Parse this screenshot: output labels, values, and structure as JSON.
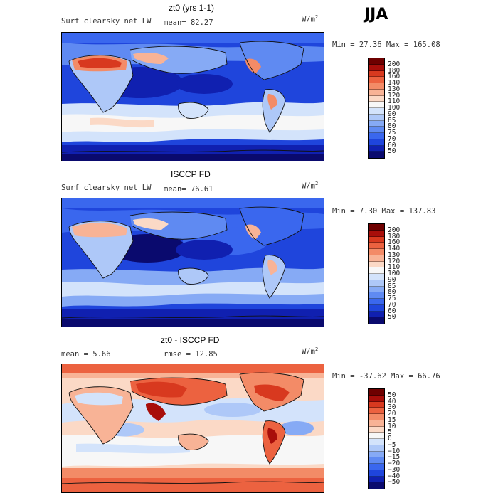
{
  "season": "JJA",
  "panels": [
    {
      "title": "zt0 (yrs 1-1)",
      "variable": "Surf clearsky net LW",
      "stat1_label": "mean=",
      "stat1_value": "82.27",
      "stat2_label": "",
      "stat2_value": "",
      "units": "W/m",
      "units_exp": "2",
      "range_text": "Min =  27.36 Max = 165.08",
      "colorbar_levels": [
        "200",
        "180",
        "160",
        "140",
        "130",
        "120",
        "110",
        "100",
        "90",
        "85",
        "80",
        "75",
        "70",
        "60",
        "50"
      ]
    },
    {
      "title": "ISCCP FD",
      "variable": "Surf clearsky net LW",
      "stat1_label": "mean=",
      "stat1_value": "76.61",
      "stat2_label": "",
      "stat2_value": "",
      "units": "W/m",
      "units_exp": "2",
      "range_text": "Min =   7.30 Max = 137.83",
      "colorbar_levels": [
        "200",
        "180",
        "160",
        "140",
        "130",
        "120",
        "110",
        "100",
        "90",
        "85",
        "80",
        "75",
        "70",
        "60",
        "50"
      ]
    },
    {
      "title": "zt0 - ISCCP FD",
      "variable": "",
      "stat1_label": "mean =",
      "stat1_value": "5.66",
      "stat2_label": "rmse =",
      "stat2_value": "12.85",
      "units": "W/m",
      "units_exp": "2",
      "range_text": "Min = -37.62 Max =  66.76",
      "colorbar_levels": [
        "50",
        "40",
        "30",
        "20",
        "15",
        "10",
        "5",
        "0",
        "−5",
        "−10",
        "−15",
        "−20",
        "−30",
        "−40",
        "−50"
      ]
    }
  ],
  "colors": {
    "abs_scale": [
      "#0a0a6e",
      "#1020b0",
      "#1f45dc",
      "#3a67ee",
      "#5f8af2",
      "#86aaf5",
      "#aec8f8",
      "#d3e3fb",
      "#f7f7f7",
      "#fbd9c6",
      "#f8b396",
      "#f38b67",
      "#ec6240",
      "#d8391f",
      "#a80e0a",
      "#6e0000"
    ],
    "diff_scale": [
      "#0a0a6e",
      "#1020b0",
      "#1f45dc",
      "#3a67ee",
      "#5f8af2",
      "#86aaf5",
      "#aec8f8",
      "#d3e3fb",
      "#f7f7f7",
      "#fbd9c6",
      "#f8b396",
      "#f38b67",
      "#ec6240",
      "#d8391f",
      "#a80e0a",
      "#6e0000"
    ]
  }
}
